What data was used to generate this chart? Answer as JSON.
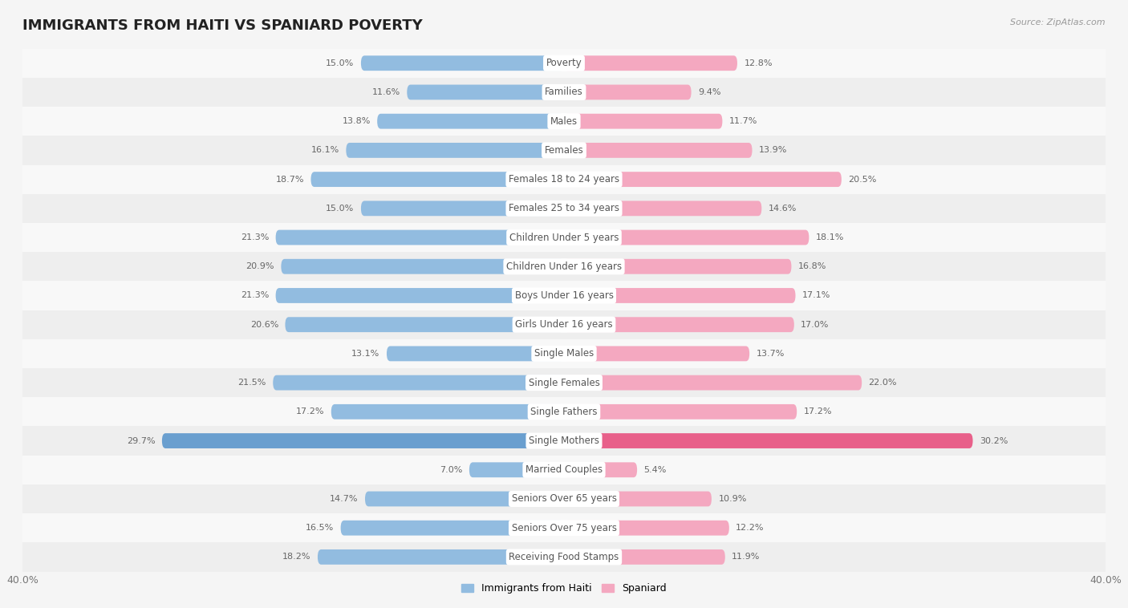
{
  "title": "IMMIGRANTS FROM HAITI VS SPANIARD POVERTY",
  "source": "Source: ZipAtlas.com",
  "categories": [
    "Poverty",
    "Families",
    "Males",
    "Females",
    "Females 18 to 24 years",
    "Females 25 to 34 years",
    "Children Under 5 years",
    "Children Under 16 years",
    "Boys Under 16 years",
    "Girls Under 16 years",
    "Single Males",
    "Single Females",
    "Single Fathers",
    "Single Mothers",
    "Married Couples",
    "Seniors Over 65 years",
    "Seniors Over 75 years",
    "Receiving Food Stamps"
  ],
  "haiti_values": [
    15.0,
    11.6,
    13.8,
    16.1,
    18.7,
    15.0,
    21.3,
    20.9,
    21.3,
    20.6,
    13.1,
    21.5,
    17.2,
    29.7,
    7.0,
    14.7,
    16.5,
    18.2
  ],
  "spaniard_values": [
    12.8,
    9.4,
    11.7,
    13.9,
    20.5,
    14.6,
    18.1,
    16.8,
    17.1,
    17.0,
    13.7,
    22.0,
    17.2,
    30.2,
    5.4,
    10.9,
    12.2,
    11.9
  ],
  "haiti_color": "#92bce0",
  "spaniard_color": "#f4a8c0",
  "highlight_haiti_color": "#6a9fcf",
  "highlight_spaniard_color": "#e8608a",
  "row_colors": [
    "#f8f8f8",
    "#eeeeee"
  ],
  "label_bg_color": "#ffffff",
  "label_text_color": "#555555",
  "value_text_color": "#666666",
  "xlim": 40.0,
  "bar_height": 0.52,
  "title_fontsize": 13,
  "label_fontsize": 8.5,
  "value_fontsize": 8,
  "legend_fontsize": 9
}
